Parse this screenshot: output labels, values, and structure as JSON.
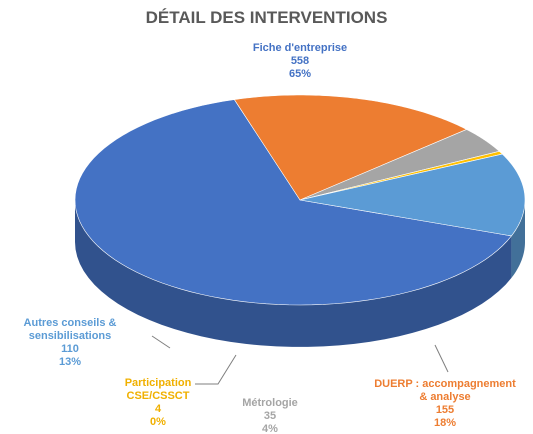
{
  "chart_data": {
    "type": "pie3d",
    "title": "DÉTAIL DES INTERVENTIONS",
    "categories": [
      "Fiche d'entreprise",
      "DUERP : accompagnement & analyse",
      "Métrologie",
      "Participation CSE/CSSCT",
      "Autres conseils & sensibilisations"
    ],
    "values": [
      558,
      155,
      35,
      4,
      110
    ],
    "percent_labels": [
      "65%",
      "18%",
      "4%",
      "0%",
      "13%"
    ],
    "colors": [
      "#4472c4",
      "#ed7d31",
      "#a5a5a5",
      "#ffc000",
      "#5b9bd5"
    ]
  }
}
